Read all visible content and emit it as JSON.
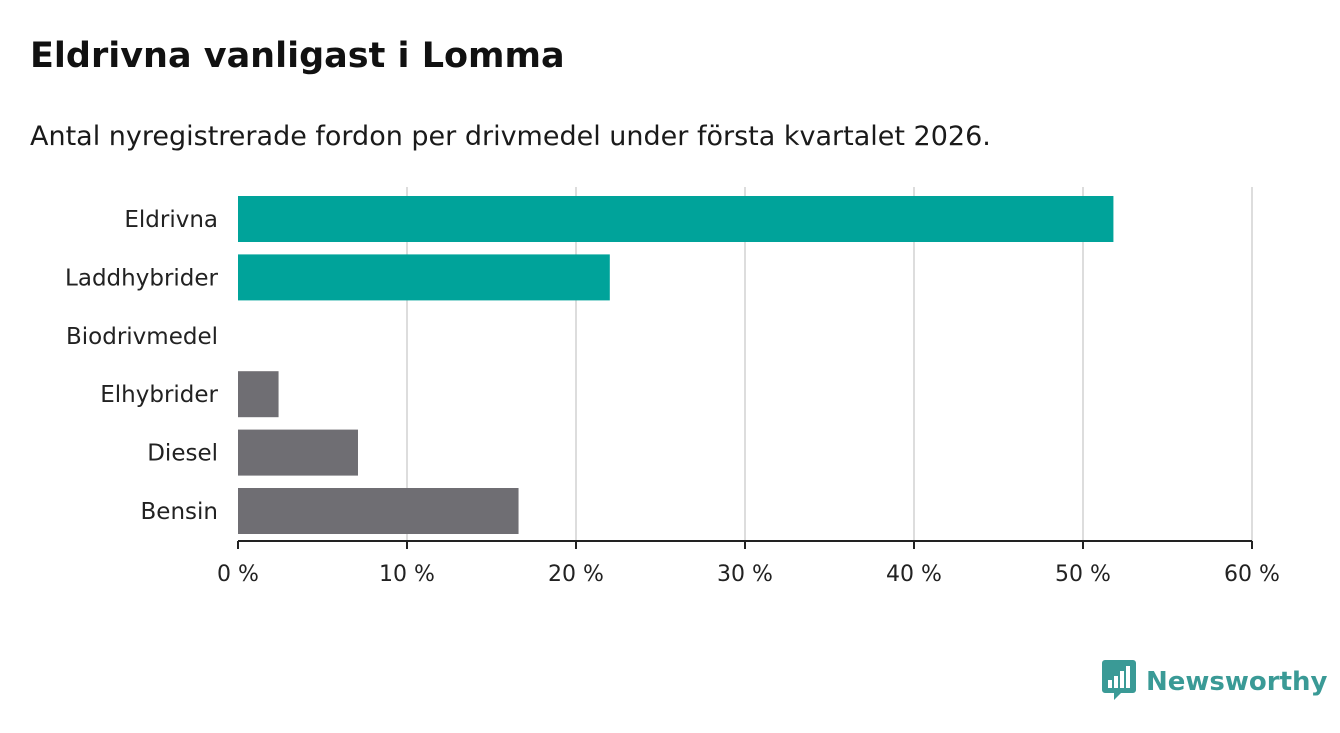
{
  "title": "Eldrivna vanligast i Lomma",
  "subtitle": "Antal nyregistrerade fordon per drivmedel under första kvartalet 2026.",
  "brand": {
    "name": "Newsworthy",
    "icon": "bar-chart-speech-bubble-icon",
    "color": "#3a9a96"
  },
  "chart_data": {
    "type": "bar",
    "orientation": "horizontal",
    "title": "Eldrivna vanligast i Lomma",
    "subtitle": "Antal nyregistrerade fordon per drivmedel under första kvartalet 2026.",
    "categories": [
      "Eldrivna",
      "Laddhybrider",
      "Biodrivmedel",
      "Elhybrider",
      "Diesel",
      "Bensin"
    ],
    "values": [
      51.8,
      22.0,
      0,
      2.4,
      7.1,
      16.6
    ],
    "colors": [
      "#00a39a",
      "#00a39a",
      "#00a39a",
      "#6f6e73",
      "#6f6e73",
      "#6f6e73"
    ],
    "unit": "%",
    "xlabel": "",
    "ylabel": "",
    "xlim": [
      0,
      60
    ],
    "ticks": [
      0,
      10,
      20,
      30,
      40,
      50,
      60
    ],
    "tick_labels": [
      "0 %",
      "10 %",
      "20 %",
      "30 %",
      "40 %",
      "50 %",
      "60 %"
    ],
    "grid": true,
    "grid_color": "#dddddd",
    "axis_color": "#222222"
  }
}
